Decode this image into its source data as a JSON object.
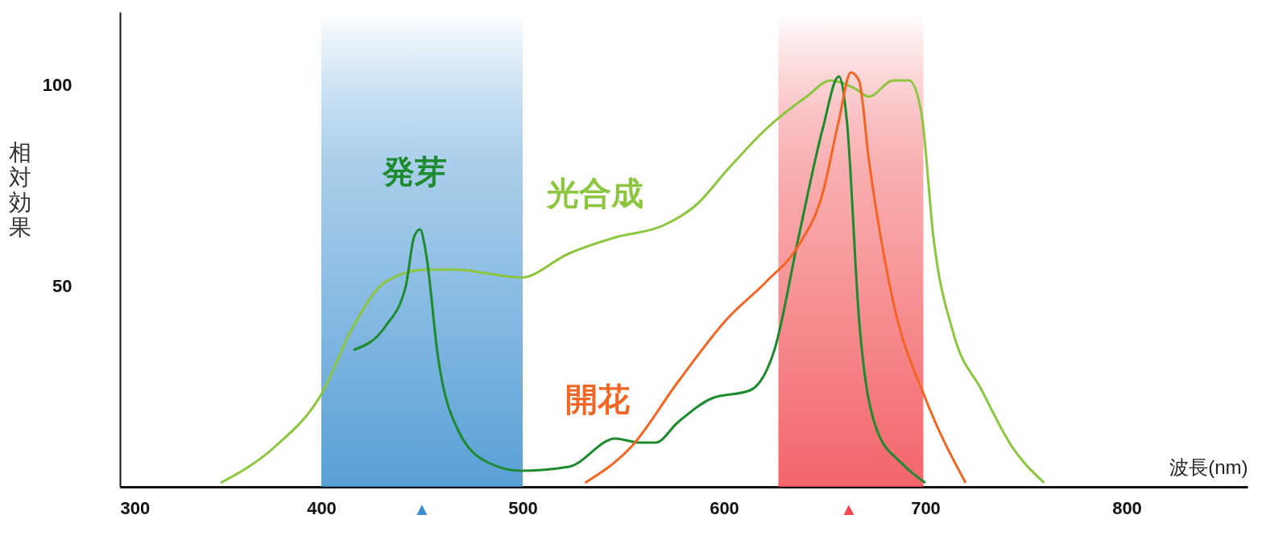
{
  "chart_data": {
    "type": "line",
    "xlabel": "波長(nm)",
    "ylabel": "相対効果",
    "xlim": [
      300,
      860
    ],
    "xticks": [
      300,
      400,
      500,
      600,
      700,
      800
    ],
    "ylim": [
      0,
      118
    ],
    "yticks": [
      50,
      100
    ],
    "grid": false,
    "legend": false,
    "marker": "none",
    "line_style": "solid",
    "series": [
      {
        "name": "光合成",
        "color": "#8cc63f",
        "x": [
          350,
          377,
          400,
          416,
          432,
          452,
          468,
          483,
          499,
          523,
          546,
          570,
          586,
          602,
          621,
          641,
          653,
          665,
          672,
          684,
          692,
          698,
          704,
          714,
          728,
          743,
          759
        ],
        "values": [
          1,
          10,
          23,
          40,
          51,
          54,
          54,
          53,
          52,
          58,
          62,
          65,
          70,
          79,
          89,
          97,
          101,
          99,
          97,
          101,
          101,
          93,
          62,
          38,
          24,
          10,
          1
        ]
      },
      {
        "name": "発芽",
        "color": "#1e8a2e",
        "x": [
          416,
          432,
          442,
          446,
          449,
          452,
          458,
          468,
          483,
          499,
          523,
          546,
          558,
          566,
          577,
          594,
          613,
          625,
          637,
          649,
          657,
          661,
          667,
          676,
          688,
          700
        ],
        "values": [
          34,
          40,
          50,
          62,
          64,
          58,
          32,
          14,
          6,
          4,
          5,
          12,
          11,
          11,
          16,
          22,
          24,
          34,
          62,
          89,
          102,
          91,
          42,
          14,
          6,
          1
        ]
      },
      {
        "name": "開花",
        "color": "#f26522",
        "x": [
          531,
          554,
          577,
          602,
          621,
          637,
          649,
          657,
          663,
          667,
          672,
          684,
          700,
          720
        ],
        "values": [
          1,
          10,
          26,
          42,
          51,
          60,
          73,
          91,
          103,
          101,
          81,
          46,
          22,
          1
        ]
      }
    ],
    "bands": [
      {
        "axis": "x",
        "from": 400,
        "to": 500,
        "color": "#3b8fd0"
      },
      {
        "axis": "x",
        "from": 627,
        "to": 699,
        "color": "#f0494f"
      }
    ],
    "annotations": [
      {
        "text": "▲",
        "x": 450,
        "y": 0
      },
      {
        "text": "▲",
        "x": 662,
        "y": 0
      }
    ]
  }
}
